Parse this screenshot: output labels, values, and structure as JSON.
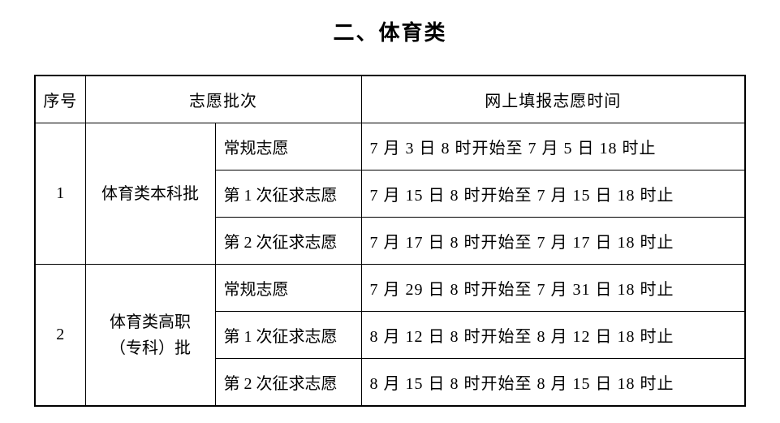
{
  "title": "二、体育类",
  "headers": {
    "seq": "序号",
    "batch": "志愿批次",
    "time": "网上填报志愿时间"
  },
  "rows": [
    {
      "seq": "1",
      "batch": "体育类本科批",
      "subs": [
        {
          "label": "常规志愿",
          "time": "7 月 3 日 8 时开始至 7 月 5 日 18 时止"
        },
        {
          "label": "第 1 次征求志愿",
          "time": "7 月 15 日 8 时开始至 7 月 15 日 18 时止"
        },
        {
          "label": "第 2 次征求志愿",
          "time": "7 月 17 日 8 时开始至 7 月 17 日 18 时止"
        }
      ]
    },
    {
      "seq": "2",
      "batch_line1": "体育类高职",
      "batch_line2": "（专科）批",
      "subs": [
        {
          "label": "常规志愿",
          "time": "7 月 29 日 8 时开始至 7 月 31 日 18 时止"
        },
        {
          "label": "第 1 次征求志愿",
          "time": "8 月 12 日 8 时开始至 8 月 12 日 18 时止"
        },
        {
          "label": "第 2 次征求志愿",
          "time": "8 月 15 日 8 时开始至 8 月 15 日 18 时止"
        }
      ]
    }
  ],
  "styling": {
    "background_color": "#ffffff",
    "text_color": "#000000",
    "border_color": "#000000",
    "title_fontsize": 26,
    "cell_fontsize": 20,
    "font_family": "SimSun",
    "outer_border_width": 2,
    "inner_border_width": 1
  }
}
